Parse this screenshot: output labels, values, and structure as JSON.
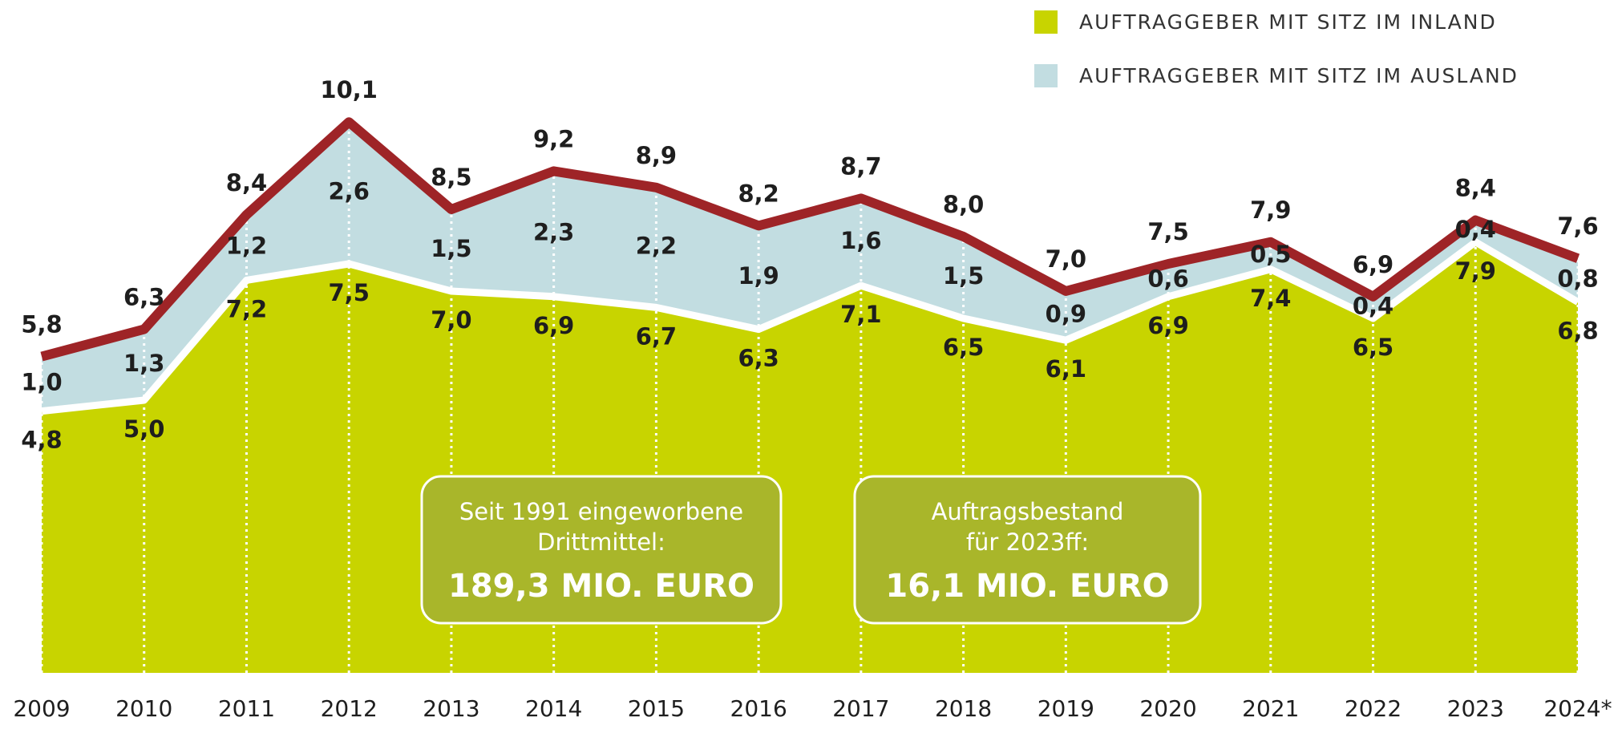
{
  "chart_data": {
    "type": "stacked_area",
    "categories": [
      "2009",
      "2010",
      "2011",
      "2012",
      "2013",
      "2014",
      "2015",
      "2016",
      "2017",
      "2018",
      "2019",
      "2020",
      "2021",
      "2022",
      "2023",
      "2024*"
    ],
    "series": [
      {
        "name": "AUFTRAGGEBER MIT SITZ IM INLAND",
        "color": "#c8d400",
        "values": [
          4.8,
          5.0,
          7.2,
          7.5,
          7.0,
          6.9,
          6.7,
          6.3,
          7.1,
          6.5,
          6.1,
          6.9,
          7.4,
          6.5,
          7.9,
          6.8
        ],
        "value_labels": [
          "4,8",
          "5,0",
          "7,2",
          "7,5",
          "7,0",
          "6,9",
          "6,7",
          "6,3",
          "7,1",
          "6,5",
          "6,1",
          "6,9",
          "7,4",
          "6,5",
          "7,9",
          "6,8"
        ]
      },
      {
        "name": "AUFTRAGGEBER MIT SITZ IM AUSLAND",
        "color": "#c2dde1",
        "values": [
          1.0,
          1.3,
          1.2,
          2.6,
          1.5,
          2.3,
          2.2,
          1.9,
          1.6,
          1.5,
          0.9,
          0.6,
          0.5,
          0.4,
          0.4,
          0.8
        ],
        "value_labels": [
          "1,0",
          "1,3",
          "1,2",
          "2,6",
          "1,5",
          "2,3",
          "2,2",
          "1,9",
          "1,6",
          "1,5",
          "0,9",
          "0,6",
          "0,5",
          "0,4",
          "0,4",
          "0,8"
        ]
      }
    ],
    "total_labels": [
      "5,8",
      "6,3",
      "8,4",
      "10,1",
      "8,5",
      "9,2",
      "8,9",
      "8,2",
      "8,7",
      "8,0",
      "7,0",
      "7,5",
      "7,9",
      "6,9",
      "8,4",
      "7,6"
    ],
    "top_line_color": "#9e2427",
    "ylim": [
      0,
      12
    ],
    "annotations": [
      {
        "lines": [
          "Seit 1991 eingeworbene",
          "Drittmittel:"
        ],
        "highlight": "189,3 MIO. EURO"
      },
      {
        "lines": [
          "Auftragsbestand",
          "für 2023ff:"
        ],
        "highlight": "16,1 MIO. EURO"
      }
    ]
  }
}
